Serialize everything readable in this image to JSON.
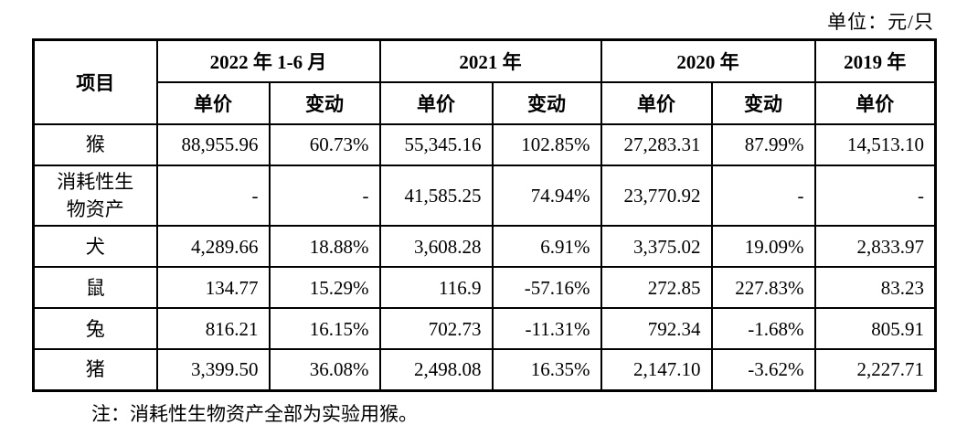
{
  "unit_label": "单位：元/只",
  "table": {
    "item_header": "项目",
    "col_groups": [
      {
        "label": "2022 年 1-6 月",
        "span": 2
      },
      {
        "label": "2021 年",
        "span": 2
      },
      {
        "label": "2020 年",
        "span": 2
      },
      {
        "label": "2019 年",
        "span": 1
      }
    ],
    "sub_headers": [
      "单价",
      "变动",
      "单价",
      "变动",
      "单价",
      "变动",
      "单价"
    ],
    "rows": [
      {
        "item": "猴",
        "values": [
          "88,955.96",
          "60.73%",
          "55,345.16",
          "102.85%",
          "27,283.31",
          "87.99%",
          "14,513.10"
        ]
      },
      {
        "item": "消耗性生物资产",
        "values": [
          "-",
          "-",
          "41,585.25",
          "74.94%",
          "23,770.92",
          "-",
          "-"
        ]
      },
      {
        "item": "犬",
        "values": [
          "4,289.66",
          "18.88%",
          "3,608.28",
          "6.91%",
          "3,375.02",
          "19.09%",
          "2,833.97"
        ]
      },
      {
        "item": "鼠",
        "values": [
          "134.77",
          "15.29%",
          "116.9",
          "-57.16%",
          "272.85",
          "227.83%",
          "83.23"
        ]
      },
      {
        "item": "兔",
        "values": [
          "816.21",
          "16.15%",
          "702.73",
          "-11.31%",
          "792.34",
          "-1.68%",
          "805.91"
        ]
      },
      {
        "item": "猪",
        "values": [
          "3,399.50",
          "36.08%",
          "2,498.08",
          "16.35%",
          "2,147.10",
          "-3.62%",
          "2,227.71"
        ]
      }
    ]
  },
  "note": "注：消耗性生物资产全部为实验用猴。",
  "colors": {
    "text": "#000000",
    "background": "#ffffff",
    "border": "#000000"
  }
}
